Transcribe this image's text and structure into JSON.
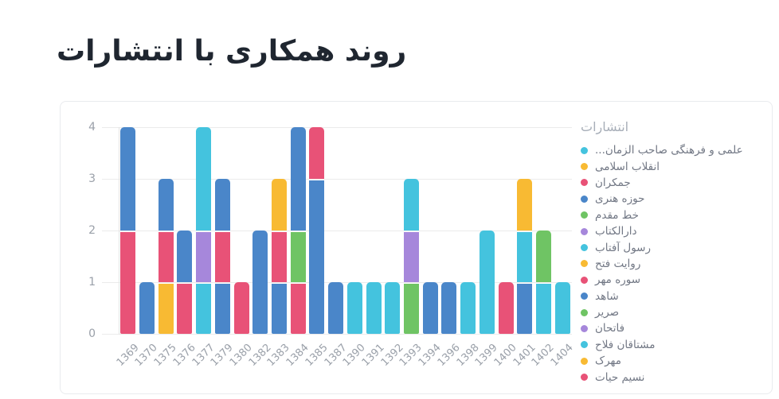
{
  "page": {
    "title": "روند همکاری با انتشارات"
  },
  "chart_data": {
    "type": "bar",
    "stacked": true,
    "title": "روند همکاری با انتشارات",
    "xlabel": "",
    "ylabel": "",
    "ylim": [
      0,
      4
    ],
    "yticks": [
      0,
      1,
      2,
      3,
      4
    ],
    "grid": true,
    "legend_position": "right",
    "legend_title": "انتشارات",
    "palette": {
      "cyan": "#44c3de",
      "yellow": "#f8ba33",
      "red": "#e85277",
      "blue": "#4a86c9",
      "green": "#6fc464",
      "purple": "#a687db"
    },
    "categories": [
      "1369",
      "1370",
      "1375",
      "1376",
      "1377",
      "1379",
      "1380",
      "1382",
      "1383",
      "1384",
      "1385",
      "1387",
      "1390",
      "1391",
      "1392",
      "1393",
      "1394",
      "1396",
      "1398",
      "1399",
      "1400",
      "1401",
      "1402",
      "1404"
    ],
    "bars": [
      {
        "category": "1369",
        "total": 4,
        "segments": [
          {
            "color": "red",
            "v": 2
          },
          {
            "color": "blue",
            "v": 2
          }
        ]
      },
      {
        "category": "1370",
        "total": 1,
        "segments": [
          {
            "color": "blue",
            "v": 1
          }
        ]
      },
      {
        "category": "1375",
        "total": 3,
        "segments": [
          {
            "color": "yellow",
            "v": 1
          },
          {
            "color": "red",
            "v": 1
          },
          {
            "color": "blue",
            "v": 1
          }
        ]
      },
      {
        "category": "1376",
        "total": 2,
        "segments": [
          {
            "color": "red",
            "v": 1
          },
          {
            "color": "blue",
            "v": 1
          }
        ]
      },
      {
        "category": "1377",
        "total": 4,
        "segments": [
          {
            "color": "cyan",
            "v": 1
          },
          {
            "color": "purple",
            "v": 1
          },
          {
            "color": "cyan",
            "v": 2
          }
        ]
      },
      {
        "category": "1379",
        "total": 3,
        "segments": [
          {
            "color": "blue",
            "v": 1
          },
          {
            "color": "red",
            "v": 1
          },
          {
            "color": "blue",
            "v": 1
          }
        ]
      },
      {
        "category": "1380",
        "total": 1,
        "segments": [
          {
            "color": "red",
            "v": 1
          }
        ]
      },
      {
        "category": "1382",
        "total": 2,
        "segments": [
          {
            "color": "blue",
            "v": 2
          }
        ]
      },
      {
        "category": "1383",
        "total": 3,
        "segments": [
          {
            "color": "blue",
            "v": 1
          },
          {
            "color": "red",
            "v": 1
          },
          {
            "color": "yellow",
            "v": 1
          }
        ]
      },
      {
        "category": "1384",
        "total": 4,
        "segments": [
          {
            "color": "red",
            "v": 1
          },
          {
            "color": "green",
            "v": 1
          },
          {
            "color": "blue",
            "v": 2
          }
        ]
      },
      {
        "category": "1385",
        "total": 4,
        "segments": [
          {
            "color": "blue",
            "v": 3
          },
          {
            "color": "red",
            "v": 1
          }
        ]
      },
      {
        "category": "1387",
        "total": 1,
        "segments": [
          {
            "color": "blue",
            "v": 1
          }
        ]
      },
      {
        "category": "1390",
        "total": 1,
        "segments": [
          {
            "color": "cyan",
            "v": 1
          }
        ]
      },
      {
        "category": "1391",
        "total": 1,
        "segments": [
          {
            "color": "cyan",
            "v": 1
          }
        ]
      },
      {
        "category": "1392",
        "total": 1,
        "segments": [
          {
            "color": "cyan",
            "v": 1
          }
        ]
      },
      {
        "category": "1393",
        "total": 3,
        "segments": [
          {
            "color": "green",
            "v": 1
          },
          {
            "color": "purple",
            "v": 1
          },
          {
            "color": "cyan",
            "v": 1
          }
        ]
      },
      {
        "category": "1394",
        "total": 1,
        "segments": [
          {
            "color": "blue",
            "v": 1
          }
        ]
      },
      {
        "category": "1396",
        "total": 1,
        "segments": [
          {
            "color": "blue",
            "v": 1
          }
        ]
      },
      {
        "category": "1398",
        "total": 1,
        "segments": [
          {
            "color": "cyan",
            "v": 1
          }
        ]
      },
      {
        "category": "1399",
        "total": 2,
        "segments": [
          {
            "color": "cyan",
            "v": 2
          }
        ]
      },
      {
        "category": "1400",
        "total": 1,
        "segments": [
          {
            "color": "red",
            "v": 1
          }
        ]
      },
      {
        "category": "1401",
        "total": 3,
        "segments": [
          {
            "color": "blue",
            "v": 1
          },
          {
            "color": "cyan",
            "v": 1
          },
          {
            "color": "yellow",
            "v": 1
          }
        ]
      },
      {
        "category": "1402",
        "total": 2,
        "segments": [
          {
            "color": "cyan",
            "v": 1
          },
          {
            "color": "green",
            "v": 1
          }
        ]
      },
      {
        "category": "1404",
        "total": 1,
        "segments": [
          {
            "color": "cyan",
            "v": 1
          }
        ]
      }
    ],
    "legend": [
      {
        "label": "علمی و فرهنگی صاحب الزمان...",
        "color": "cyan"
      },
      {
        "label": "انقلاب اسلامی",
        "color": "yellow"
      },
      {
        "label": "جمکران",
        "color": "red"
      },
      {
        "label": "حوزه هنری",
        "color": "blue"
      },
      {
        "label": "خط مقدم",
        "color": "green"
      },
      {
        "label": "دارالکتاب",
        "color": "purple"
      },
      {
        "label": "رسول آفتاب",
        "color": "cyan"
      },
      {
        "label": "روایت فتح",
        "color": "yellow"
      },
      {
        "label": "سوره مهر",
        "color": "red"
      },
      {
        "label": "شاهد",
        "color": "blue"
      },
      {
        "label": "صریر",
        "color": "green"
      },
      {
        "label": "فاتحان",
        "color": "purple"
      },
      {
        "label": "مشتاقان فلاح",
        "color": "cyan"
      },
      {
        "label": "مهرک",
        "color": "yellow"
      },
      {
        "label": "نسیم حیات",
        "color": "red"
      }
    ]
  }
}
